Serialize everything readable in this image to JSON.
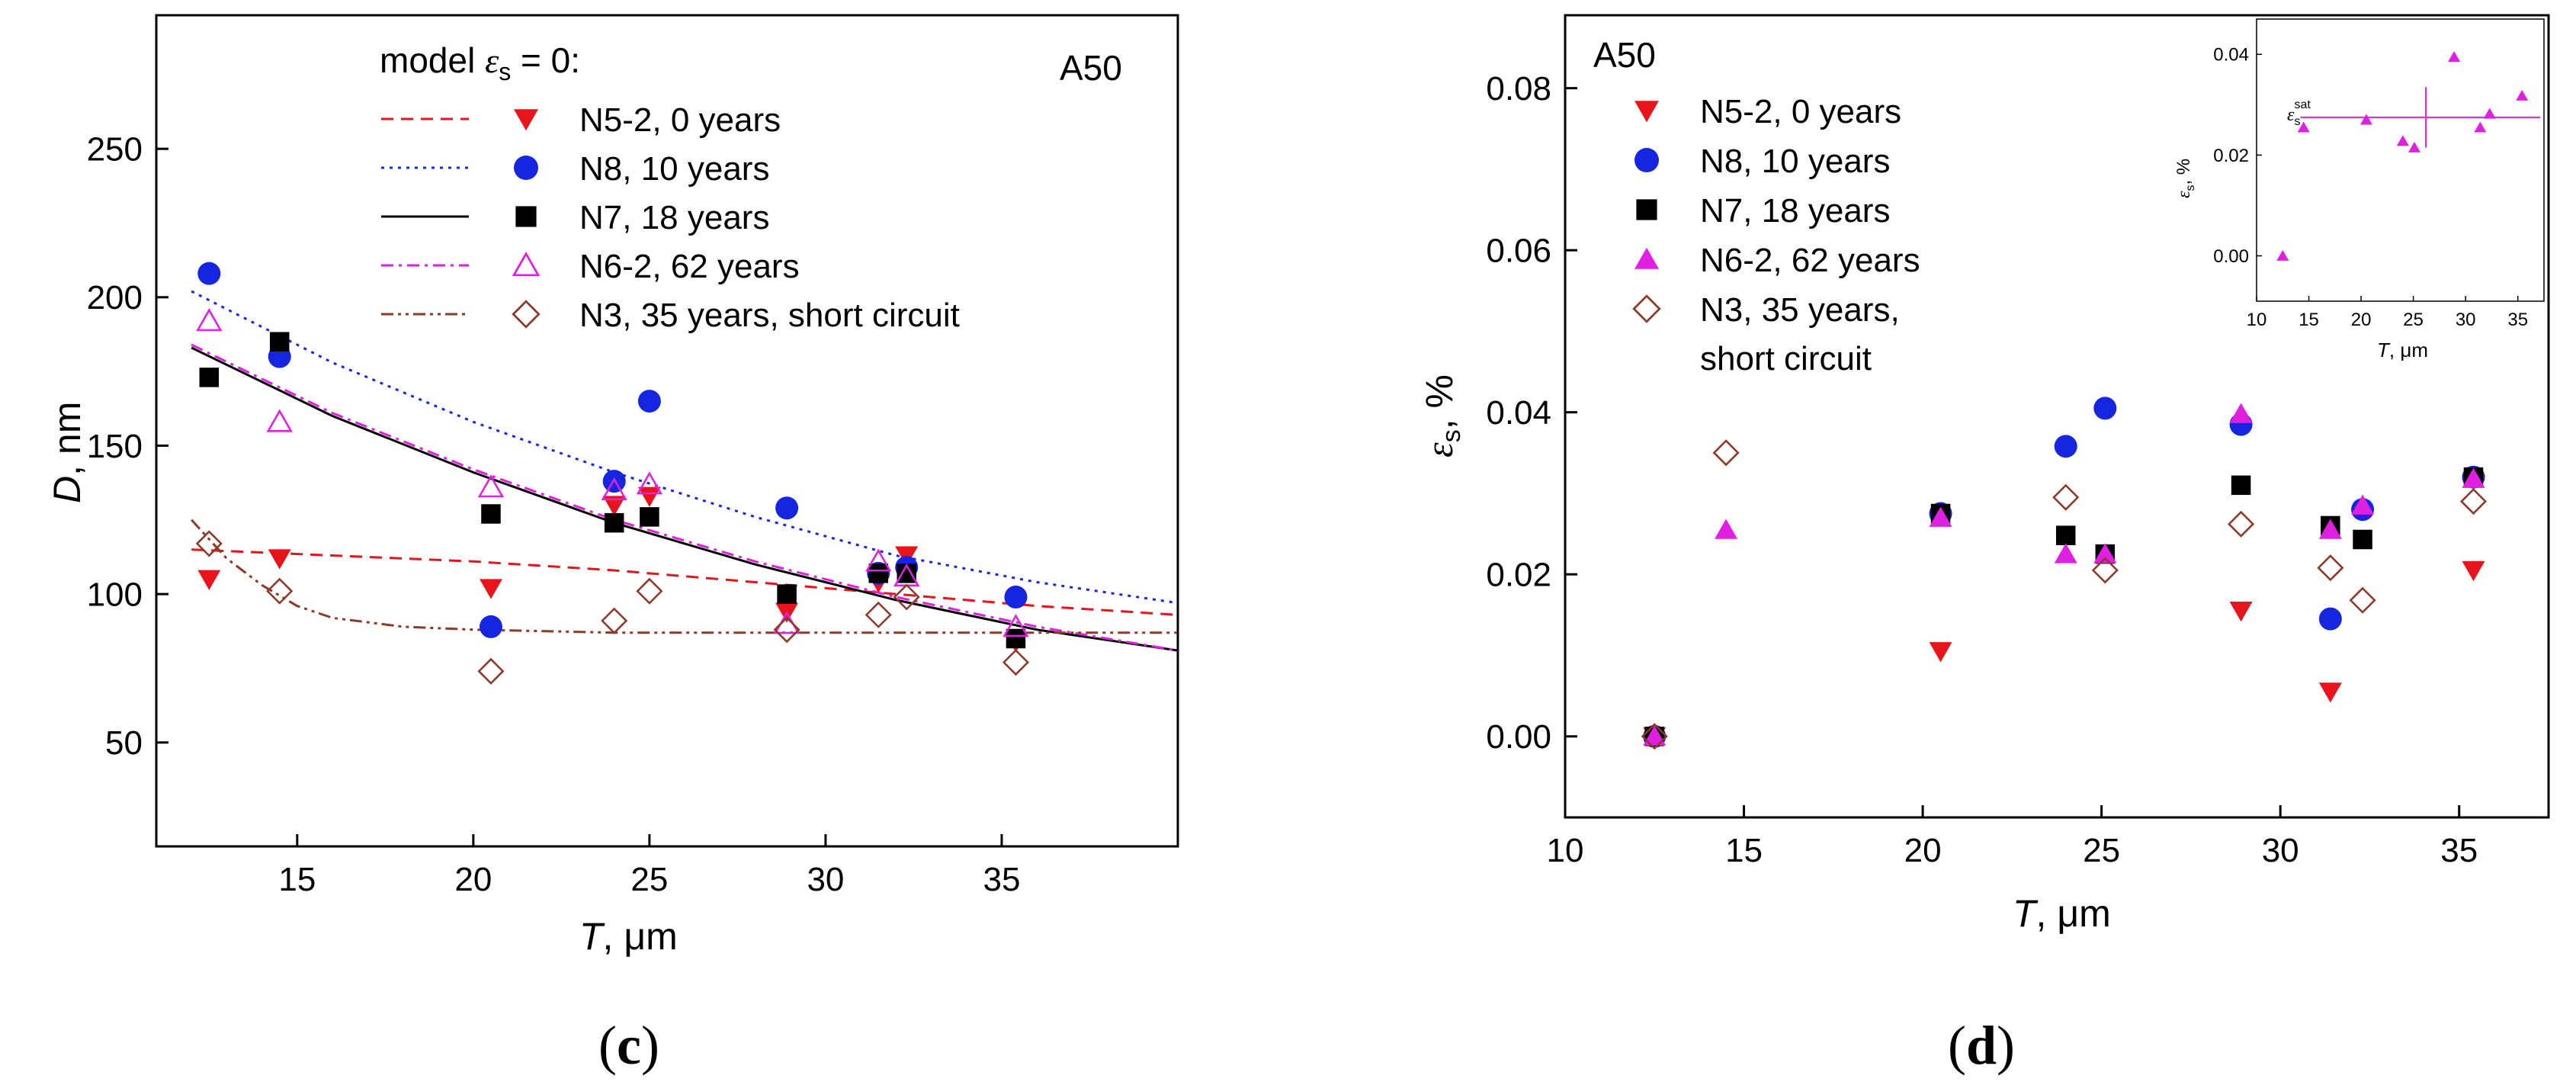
{
  "panels": [
    {
      "label_open": "(",
      "label_letter": "c",
      "label_close": ")",
      "corner_label": "A50",
      "x_axis_label": {
        "main": "T",
        "rest": ", μm"
      },
      "y_axis_label": {
        "main": "D",
        "rest": ", nm"
      },
      "legend_title": {
        "pre": "model ",
        "sym": "ε",
        "sub": "s",
        "post": " = 0:"
      }
    },
    {
      "label_open": "(",
      "label_letter": "d",
      "label_close": ")",
      "corner_label": "A50",
      "x_axis_label": {
        "main": "T",
        "rest": ", μm"
      },
      "y_axis_label": {
        "sym": "ε",
        "sub": "s",
        "rest": ", %"
      },
      "inset": {
        "x_axis_label": {
          "main": "T",
          "rest": ", μm"
        },
        "y_axis_label": {
          "sym": "ε",
          "sub": "s",
          "rest": ", %"
        },
        "annotation": {
          "sym": "ε",
          "sub": "s",
          "sup": "sat"
        }
      }
    }
  ],
  "chart_data": [
    {
      "type": "scatter",
      "title": "",
      "xlabel": "T, μm",
      "ylabel": "D, nm",
      "xlim": [
        11,
        40
      ],
      "ylim": [
        15,
        295
      ],
      "xticks": [
        "15",
        "20",
        "25",
        "30",
        "35"
      ],
      "yticks": [
        "50",
        "100",
        "150",
        "200",
        "250"
      ],
      "grid": false,
      "legend": "top-right",
      "series": [
        {
          "name": "N5-2, 0 years",
          "marker": "triangle-down",
          "color": "#e8141c",
          "x": [
            12.5,
            14.5,
            20.5,
            24.0,
            25.0,
            28.9,
            31.5,
            32.3,
            35.4
          ],
          "y": [
            105,
            112,
            102,
            130,
            133,
            94,
            104,
            113,
            84
          ]
        },
        {
          "name": "N8, 10 years",
          "marker": "circle",
          "color": "#1626e0",
          "x": [
            12.5,
            14.5,
            20.5,
            24.0,
            25.0,
            28.9,
            31.5,
            32.3,
            35.4
          ],
          "y": [
            208,
            180,
            89,
            138,
            165,
            129,
            107,
            109,
            99
          ]
        },
        {
          "name": "N7, 18 years",
          "marker": "square",
          "color": "#000000",
          "x": [
            12.5,
            14.5,
            20.5,
            24.0,
            25.0,
            28.9,
            31.5,
            32.3,
            35.4
          ],
          "y": [
            173,
            185,
            127,
            124,
            126,
            100,
            107,
            107,
            85
          ]
        },
        {
          "name": "N6-2, 62 years",
          "marker": "triangle-up-open",
          "color": "#e020e0",
          "x": [
            12.5,
            14.5,
            20.5,
            24.0,
            25.0,
            28.9,
            31.5,
            32.3,
            35.4
          ],
          "y": [
            192,
            158,
            136,
            135,
            137,
            90,
            111,
            106,
            89
          ]
        },
        {
          "name": "N3, 35 years, short circuit",
          "marker": "diamond-open",
          "color": "#8b3a2a",
          "x": [
            12.5,
            14.5,
            20.5,
            24.0,
            25.0,
            28.9,
            31.5,
            32.3,
            35.4
          ],
          "y": [
            117,
            101,
            74,
            91,
            101,
            88,
            93,
            99,
            77
          ]
        }
      ],
      "model_curves": [
        {
          "series": "N5-2, 0 years",
          "style": "dashed",
          "color": "#e8141c",
          "x": [
            12,
            16,
            20,
            24,
            28,
            32,
            36,
            40
          ],
          "y": [
            115,
            113,
            111,
            108,
            104,
            100,
            96,
            93
          ]
        },
        {
          "series": "N8, 10 years",
          "style": "dotted",
          "color": "#1626e0",
          "x": [
            12,
            16,
            20,
            24,
            28,
            32,
            36,
            40
          ],
          "y": [
            202,
            178,
            158,
            141,
            126,
            113,
            104,
            97
          ]
        },
        {
          "series": "N7, 18 years",
          "style": "solid",
          "color": "#000000",
          "x": [
            12,
            16,
            20,
            24,
            28,
            32,
            36,
            40
          ],
          "y": [
            183,
            160,
            141,
            124,
            110,
            98,
            88,
            81
          ]
        },
        {
          "series": "N6-2, 62 years",
          "style": "dash-dot",
          "color": "#e020e0",
          "x": [
            12,
            16,
            20,
            24,
            28,
            32,
            36,
            40
          ],
          "y": [
            184,
            161,
            142,
            125,
            111,
            99,
            89,
            81
          ]
        },
        {
          "series": "N3, 35 years, short circuit",
          "style": "dash-dot-dot",
          "color": "#8b3a2a",
          "x": [
            12,
            13,
            14,
            15,
            16,
            18,
            20,
            24,
            28,
            32,
            36,
            40
          ],
          "y": [
            125,
            112,
            103,
            96,
            92,
            89,
            88,
            87,
            87,
            87,
            87,
            87
          ]
        }
      ]
    },
    {
      "type": "scatter",
      "title": "",
      "xlabel": "T, μm",
      "ylabel": "εs, %",
      "xlim": [
        10,
        37.5
      ],
      "ylim": [
        -0.01,
        0.089
      ],
      "xticks": [
        "10",
        "15",
        "20",
        "25",
        "30",
        "35"
      ],
      "yticks": [
        "0.00",
        "0.02",
        "0.04",
        "0.06",
        "0.08"
      ],
      "grid": false,
      "legend": "top-left",
      "series": [
        {
          "name": "N5-2, 0 years",
          "marker": "triangle-down",
          "color": "#e8141c",
          "x": [
            12.5,
            20.5,
            28.9,
            31.4,
            35.4
          ],
          "y": [
            0.0,
            0.0105,
            0.0155,
            0.0055,
            0.0205
          ]
        },
        {
          "name": "N8, 10 years",
          "marker": "circle",
          "color": "#1626e0",
          "x": [
            12.5,
            20.5,
            24.0,
            25.1,
            28.9,
            31.4,
            32.3,
            35.4
          ],
          "y": [
            0.0,
            0.0275,
            0.0358,
            0.0405,
            0.0385,
            0.0145,
            0.028,
            0.032
          ]
        },
        {
          "name": "N7, 18 years",
          "marker": "square",
          "color": "#000000",
          "x": [
            12.5,
            20.5,
            24.0,
            25.1,
            28.9,
            31.4,
            32.3,
            35.4
          ],
          "y": [
            0.0,
            0.0275,
            0.0248,
            0.0225,
            0.031,
            0.026,
            0.0243,
            0.032
          ]
        },
        {
          "name": "N6-2, 62 years",
          "marker": "triangle-up",
          "color": "#e020e0",
          "x": [
            12.5,
            14.5,
            20.5,
            24.0,
            25.1,
            28.9,
            31.4,
            32.3,
            35.4
          ],
          "y": [
            0.0,
            0.0255,
            0.027,
            0.0225,
            0.0225,
            0.0398,
            0.0255,
            0.0285,
            0.0318
          ]
        },
        {
          "name": "N3, 35 years, short circuit",
          "marker": "diamond-open",
          "color": "#8b3a2a",
          "x": [
            12.5,
            14.5,
            24.0,
            25.1,
            28.9,
            31.4,
            32.3,
            35.4
          ],
          "y": [
            0.0,
            0.035,
            0.0295,
            0.0205,
            0.0262,
            0.0208,
            0.0168,
            0.029
          ]
        }
      ],
      "inset": {
        "type": "scatter",
        "xlabel": "T, μm",
        "ylabel": "εs, %",
        "xlim": [
          10,
          37.5
        ],
        "ylim": [
          -0.009,
          0.047
        ],
        "xticks": [
          "10",
          "15",
          "20",
          "25",
          "30",
          "35"
        ],
        "yticks": [
          "0.00",
          "0.02",
          "0.04"
        ],
        "series": [
          {
            "name": "εs",
            "marker": "triangle-up",
            "color": "#e020e0",
            "x": [
              12.5,
              14.5,
              20.5,
              24.0,
              25.1,
              28.9,
              31.4,
              32.3,
              35.4
            ],
            "y": [
              0.0,
              0.0255,
              0.027,
              0.0228,
              0.0215,
              0.0395,
              0.0255,
              0.0282,
              0.0318
            ]
          }
        ],
        "annotation": "εs sat",
        "saturation_level": 0.0275,
        "mean_x": 26.2,
        "error_y": [
          0.0215,
          0.0335
        ],
        "line_color": "#e020e0"
      }
    }
  ]
}
